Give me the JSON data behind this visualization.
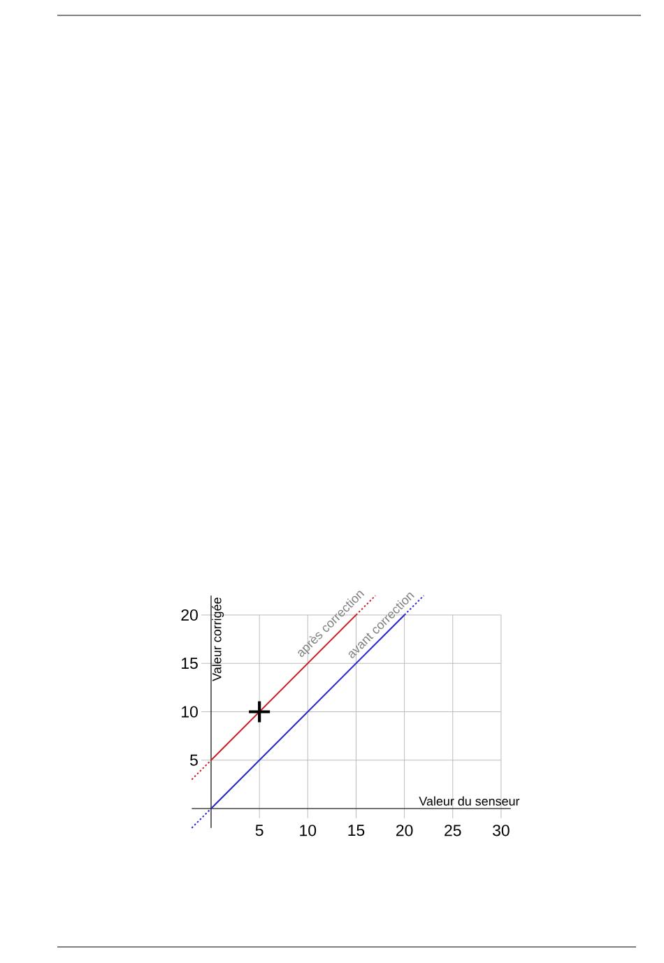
{
  "chart_data": {
    "type": "line",
    "xlabel": "Valeur du senseur",
    "ylabel": "Valeur corrigée",
    "xlim": [
      -2,
      31
    ],
    "ylim": [
      -2,
      22
    ],
    "xticks": [
      5,
      10,
      15,
      20,
      25,
      30
    ],
    "yticks": [
      5,
      10,
      15,
      20
    ],
    "grid": true,
    "series": [
      {
        "name": "après correction",
        "color": "#c42026",
        "x": [
          0,
          15
        ],
        "values": [
          5,
          20
        ],
        "line_style": "solid"
      },
      {
        "color": "#c42026",
        "x": [
          -2,
          0
        ],
        "values": [
          3,
          5
        ],
        "line_style": "dotted"
      },
      {
        "color": "#c42026",
        "x": [
          15,
          17
        ],
        "values": [
          20,
          22
        ],
        "line_style": "dotted"
      },
      {
        "name": "avant correction",
        "color": "#2424c8",
        "x": [
          0,
          20
        ],
        "values": [
          0,
          20
        ],
        "line_style": "solid"
      },
      {
        "color": "#2424c8",
        "x": [
          -2,
          0
        ],
        "values": [
          -2,
          0
        ],
        "line_style": "dotted"
      },
      {
        "color": "#2424c8",
        "x": [
          20,
          22
        ],
        "values": [
          20,
          22
        ],
        "line_style": "dotted"
      },
      {
        "type": "scatter",
        "color": "#000000",
        "x": [
          5
        ],
        "values": [
          10
        ],
        "marker": "cross"
      }
    ]
  }
}
